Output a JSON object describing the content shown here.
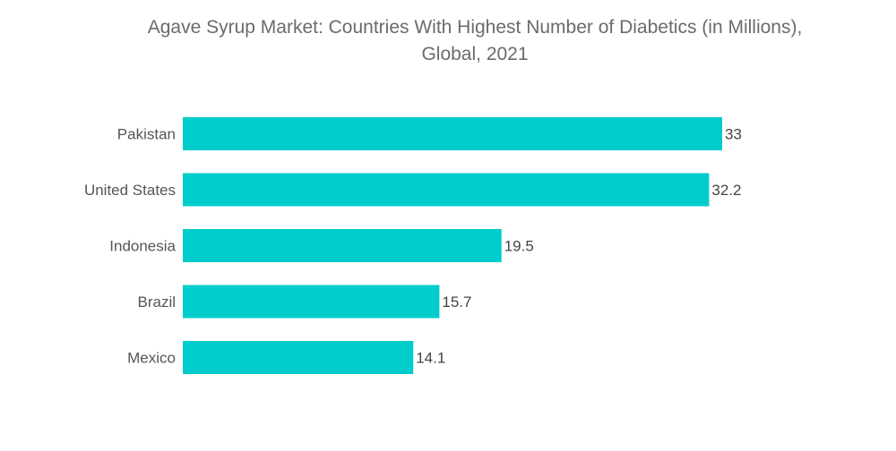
{
  "chart_data": {
    "type": "bar",
    "orientation": "horizontal",
    "title_lines": [
      "Agave Syrup Market: Countries With Highest Number of Diabetics (in Millions),",
      "Global, 2021"
    ],
    "categories": [
      "Pakistan",
      "United States",
      "Indonesia",
      "Brazil",
      "Mexico"
    ],
    "values": [
      33,
      32.2,
      19.5,
      15.7,
      14.1
    ],
    "value_labels": [
      "33",
      "32.2",
      "19.5",
      "15.7",
      "14.1"
    ],
    "xlim": [
      0,
      33
    ],
    "bar_color": "#00CCCC",
    "xlabel": "",
    "ylabel": "",
    "grid": false
  }
}
